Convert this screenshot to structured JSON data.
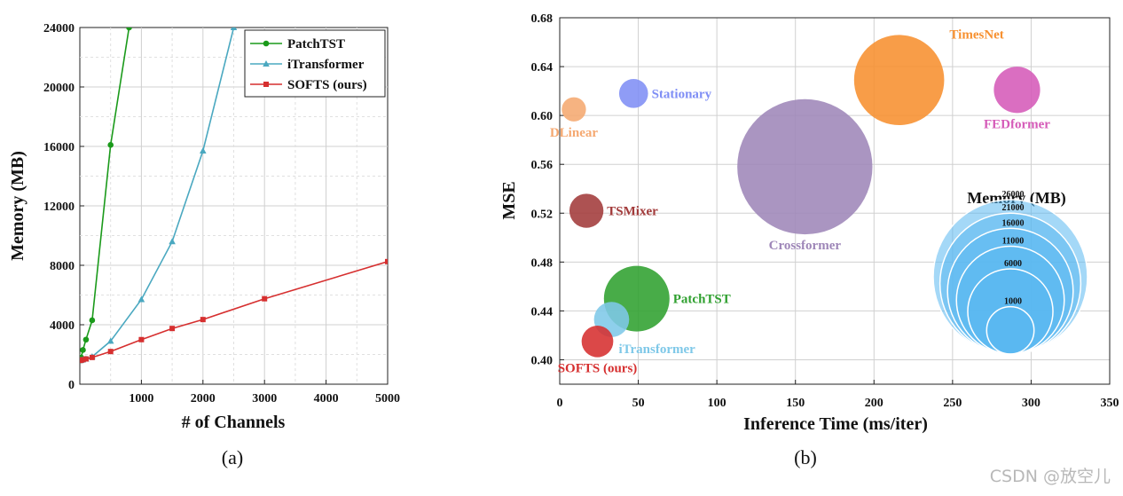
{
  "chart_data": [
    {
      "type": "line",
      "caption": "(a)",
      "xlabel": "# of Channels",
      "ylabel": "Memory (MB)",
      "xlim": [
        0,
        5000
      ],
      "ylim": [
        0,
        24000
      ],
      "xticks": [
        1000,
        2000,
        3000,
        4000,
        5000
      ],
      "yticks": [
        0,
        4000,
        8000,
        12000,
        16000,
        20000,
        24000
      ],
      "ytick_labels": [
        "0",
        "4000",
        "8000",
        "12000",
        "16000",
        "20000",
        "24000"
      ],
      "xtick_labels": [
        "1000",
        "2000",
        "3000",
        "4000",
        "5000"
      ],
      "grid": true,
      "legend_position": "top-right",
      "series": [
        {
          "name": "PatchTST",
          "color": "#1a9a1a",
          "marker": "circle",
          "x": [
            7,
            21,
            50,
            100,
            200,
            500,
            800
          ],
          "y": [
            1600,
            1800,
            2300,
            3000,
            4300,
            16100,
            24000
          ]
        },
        {
          "name": "iTransformer",
          "color": "#4aa8c0",
          "marker": "triangle",
          "x": [
            7,
            21,
            50,
            100,
            200,
            500,
            1000,
            1500,
            2000,
            2500
          ],
          "y": [
            1600,
            1620,
            1650,
            1700,
            1850,
            2900,
            5700,
            9600,
            15700,
            24000
          ]
        },
        {
          "name": "SOFTS (ours)",
          "color": "#d62f2f",
          "marker": "square",
          "x": [
            7,
            21,
            50,
            100,
            200,
            500,
            1000,
            1500,
            2000,
            3000,
            5000
          ],
          "y": [
            1600,
            1620,
            1650,
            1700,
            1800,
            2200,
            3000,
            3750,
            4350,
            5750,
            8250
          ]
        }
      ]
    },
    {
      "type": "scatter",
      "caption": "(b)",
      "xlabel": "Inference Time (ms/iter)",
      "ylabel": "MSE",
      "xlim": [
        0,
        350
      ],
      "ylim": [
        0.38,
        0.68
      ],
      "xticks": [
        0,
        50,
        100,
        150,
        200,
        250,
        300,
        350
      ],
      "xtick_labels": [
        "0",
        "50",
        "100",
        "150",
        "200",
        "250",
        "300",
        "350"
      ],
      "yticks": [
        0.4,
        0.44,
        0.48,
        0.52,
        0.56,
        0.6,
        0.64,
        0.68
      ],
      "ytick_labels": [
        "0.40",
        "0.44",
        "0.48",
        "0.52",
        "0.56",
        "0.60",
        "0.64",
        "0.68"
      ],
      "grid": true,
      "points": [
        {
          "name": "Crossformer",
          "x": 156,
          "y": 0.558,
          "memory": 26000,
          "color": "#9e86b8",
          "label_pos": "below"
        },
        {
          "name": "TimesNet",
          "x": 216,
          "y": 0.629,
          "memory": 11000,
          "color": "#f7902f",
          "label_pos": "upper-right"
        },
        {
          "name": "FEDformer",
          "x": 291,
          "y": 0.621,
          "memory": 2500,
          "color": "#d55ab8",
          "label_pos": "below"
        },
        {
          "name": "Stationary",
          "x": 47,
          "y": 0.618,
          "memory": 800,
          "color": "#7f8ef5",
          "label_pos": "right"
        },
        {
          "name": "DLinear",
          "x": 9,
          "y": 0.605,
          "memory": 500,
          "color": "#f5a870",
          "label_pos": "below"
        },
        {
          "name": "TSMixer",
          "x": 17,
          "y": 0.522,
          "memory": 1200,
          "color": "#a23a3a",
          "label_pos": "right"
        },
        {
          "name": "PatchTST",
          "x": 49,
          "y": 0.45,
          "memory": 5500,
          "color": "#2fa02f",
          "label_pos": "right"
        },
        {
          "name": "iTransformer",
          "x": 33,
          "y": 0.433,
          "memory": 1300,
          "color": "#7ec8e8",
          "label_pos": "below-right"
        },
        {
          "name": "SOFTS (ours)",
          "x": 24,
          "y": 0.415,
          "memory": 1000,
          "color": "#d62f2f",
          "label_pos": "below"
        }
      ],
      "memory_legend": {
        "title": "Memory (MB)",
        "values": [
          26000,
          21000,
          16000,
          11000,
          6000,
          1000
        ],
        "labels": [
          "26000",
          "21000",
          "16000",
          "11000",
          "6000",
          "1000"
        ],
        "color": "#5ab8f0"
      }
    }
  ],
  "watermark": "CSDN @放空儿"
}
